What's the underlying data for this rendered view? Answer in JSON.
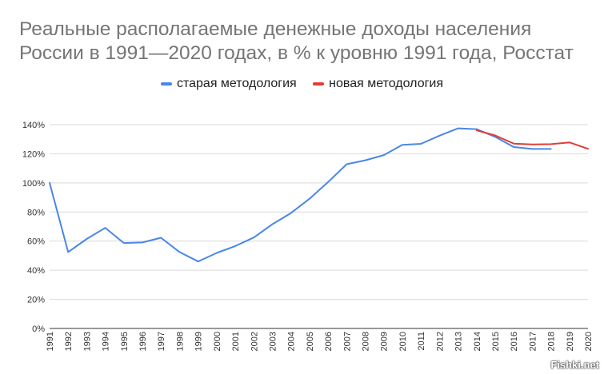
{
  "chart_data": {
    "type": "line",
    "title": [
      "Реальные располагаемые денежные доходы населения",
      "России в 1991—2020 годах, в % к уровню 1991 года, Росстат"
    ],
    "x": [
      1991,
      1992,
      1993,
      1994,
      1995,
      1996,
      1997,
      1998,
      1999,
      2000,
      2001,
      2002,
      2003,
      2004,
      2005,
      2006,
      2007,
      2008,
      2009,
      2010,
      2011,
      2012,
      2013,
      2014,
      2015,
      2016,
      2017,
      2018,
      2019,
      2020
    ],
    "series": [
      {
        "name": "старая методология",
        "color": "#4a86e8",
        "values": [
          100,
          52.5,
          61.5,
          69.1,
          58.7,
          59.1,
          62.3,
          52.5,
          46,
          51.9,
          56.6,
          62.5,
          71.6,
          79.3,
          89.1,
          100.6,
          112.8,
          115.5,
          119.1,
          126.1,
          126.8,
          132.4,
          137.5,
          136.9,
          131.6,
          124.6,
          123.3,
          123.3,
          null,
          null
        ]
      },
      {
        "name": "новая методология",
        "color": "#e03e36",
        "values": [
          null,
          null,
          null,
          null,
          null,
          null,
          null,
          null,
          null,
          null,
          null,
          null,
          null,
          null,
          null,
          null,
          null,
          null,
          null,
          null,
          null,
          null,
          null,
          136.1,
          132.6,
          127,
          126.4,
          126.6,
          127.8,
          123.4
        ]
      }
    ],
    "ylim": [
      0,
      140
    ],
    "yticks": [
      "0%",
      "20%",
      "40%",
      "60%",
      "80%",
      "100%",
      "120%",
      "140%"
    ],
    "legend_position": "top-center",
    "grid": true
  },
  "watermark": "Fishki.net"
}
